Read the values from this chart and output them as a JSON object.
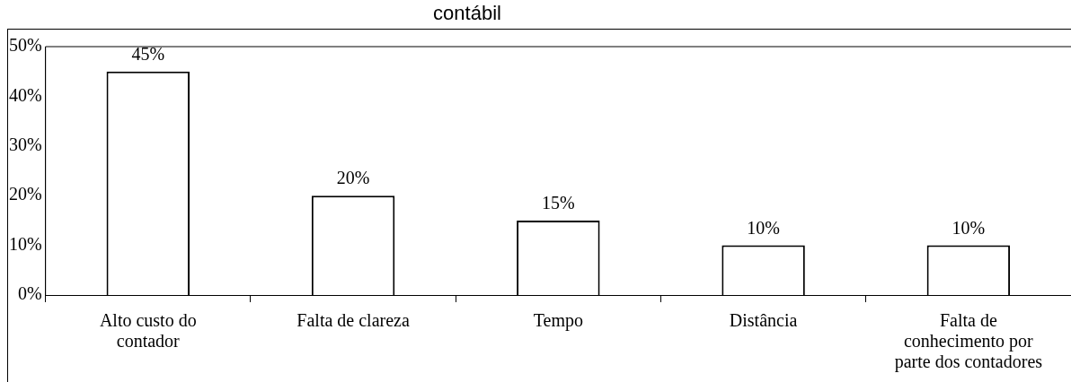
{
  "chart_data": {
    "type": "bar",
    "title": "contábil",
    "categories": [
      "Alto custo do contador",
      "Falta de clareza",
      "Tempo",
      "Distância",
      "Falta de conhecimento por parte dos contadores"
    ],
    "values": [
      45,
      20,
      15,
      10,
      10
    ],
    "color": "#ffffff",
    "ylim": [
      0,
      50
    ],
    "yticks": [
      {
        "value": 0,
        "label": "0%"
      },
      {
        "value": 10,
        "label": "10%"
      },
      {
        "value": 20,
        "label": "20%"
      },
      {
        "value": 30,
        "label": "30%"
      },
      {
        "value": 40,
        "label": "40%"
      },
      {
        "value": 50,
        "label": "50%"
      }
    ],
    "value_labels": [
      "45%",
      "20%",
      "15%",
      "10%",
      "10%"
    ],
    "grid": false,
    "legend": false
  }
}
